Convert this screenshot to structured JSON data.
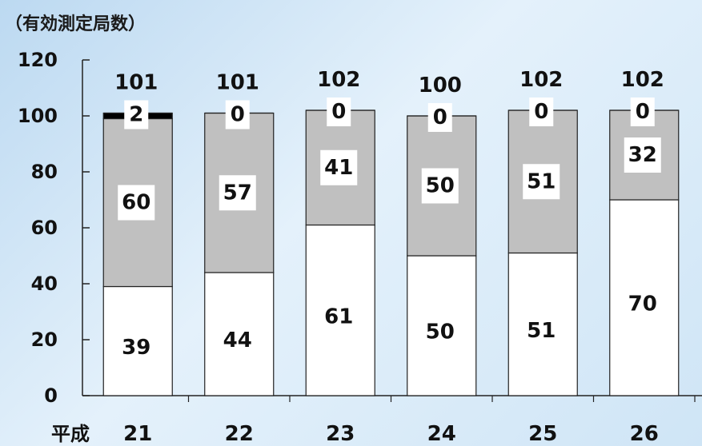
{
  "chart_data": {
    "type": "bar",
    "stacked": true,
    "unit_label": "（有効測定局数）",
    "era_label": "平成",
    "categories": [
      "21",
      "22",
      "23",
      "24",
      "25",
      "26"
    ],
    "totals": [
      101,
      101,
      102,
      100,
      102,
      102
    ],
    "series": [
      {
        "values": [
          39,
          44,
          61,
          50,
          51,
          70
        ],
        "color": "#ffffff"
      },
      {
        "values": [
          60,
          57,
          41,
          50,
          51,
          32
        ],
        "color": "#c0c0c0"
      },
      {
        "values": [
          2,
          0,
          0,
          0,
          0,
          0
        ],
        "color": "#000000"
      }
    ],
    "ylim": [
      0,
      120
    ],
    "yticks": [
      0,
      20,
      40,
      60,
      80,
      100,
      120
    ],
    "grid": false
  }
}
